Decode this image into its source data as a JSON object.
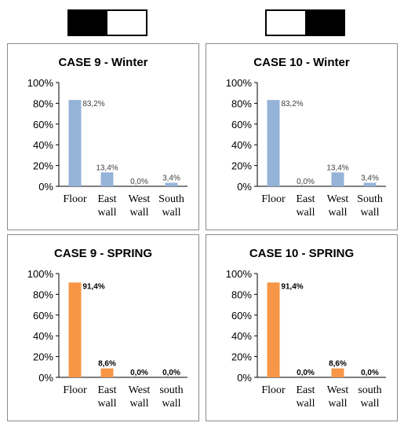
{
  "swatches": [
    {
      "cells": [
        "#000000",
        "#ffffff"
      ]
    },
    {
      "cells": [
        "#ffffff",
        "#000000"
      ]
    }
  ],
  "chart_data": [
    {
      "type": "bar",
      "title": "CASE 9 - Winter",
      "categories": [
        [
          "Floor"
        ],
        [
          "East",
          "wall"
        ],
        [
          "West",
          "wall"
        ],
        [
          "South",
          "wall"
        ]
      ],
      "values": [
        83.2,
        13.4,
        0.0,
        3.4
      ],
      "labels": [
        "83,2%",
        "13,4%",
        "0,0%",
        "3,4%"
      ],
      "yticks": [
        "0%",
        "20%",
        "40%",
        "60%",
        "80%",
        "100%"
      ],
      "ylim": [
        0,
        100
      ],
      "color": "#95b3d7",
      "label_weight": "normal"
    },
    {
      "type": "bar",
      "title": "CASE 10 - Winter",
      "categories": [
        [
          "Floor"
        ],
        [
          "East",
          "wall"
        ],
        [
          "West",
          "wall"
        ],
        [
          "South",
          "wall"
        ]
      ],
      "values": [
        83.2,
        0.0,
        13.4,
        3.4
      ],
      "labels": [
        "83,2%",
        "0,0%",
        "13,4%",
        "3,4%"
      ],
      "yticks": [
        "0%",
        "20%",
        "40%",
        "60%",
        "80%",
        "100%"
      ],
      "ylim": [
        0,
        100
      ],
      "color": "#95b3d7",
      "label_weight": "normal"
    },
    {
      "type": "bar",
      "title": "CASE 9 - SPRING",
      "categories": [
        [
          "Floor"
        ],
        [
          "East",
          "wall"
        ],
        [
          "West",
          "wall"
        ],
        [
          "south",
          "wall"
        ]
      ],
      "values": [
        91.4,
        8.6,
        0.0,
        0.0
      ],
      "labels": [
        "91,4%",
        "8,6%",
        "0,0%",
        "0,0%"
      ],
      "yticks": [
        "0%",
        "20%",
        "40%",
        "60%",
        "80%",
        "100%"
      ],
      "ylim": [
        0,
        100
      ],
      "color": "#f79646",
      "label_weight": "bold"
    },
    {
      "type": "bar",
      "title": "CASE 10 - SPRING",
      "categories": [
        [
          "Floor"
        ],
        [
          "East",
          "wall"
        ],
        [
          "West",
          "wall"
        ],
        [
          "south",
          "wall"
        ]
      ],
      "values": [
        91.4,
        0.0,
        8.6,
        0.0
      ],
      "labels": [
        "91,4%",
        "0,0%",
        "8,6%",
        "0,0%"
      ],
      "yticks": [
        "0%",
        "20%",
        "40%",
        "60%",
        "80%",
        "100%"
      ],
      "ylim": [
        0,
        100
      ],
      "color": "#f79646",
      "label_weight": "bold"
    }
  ]
}
